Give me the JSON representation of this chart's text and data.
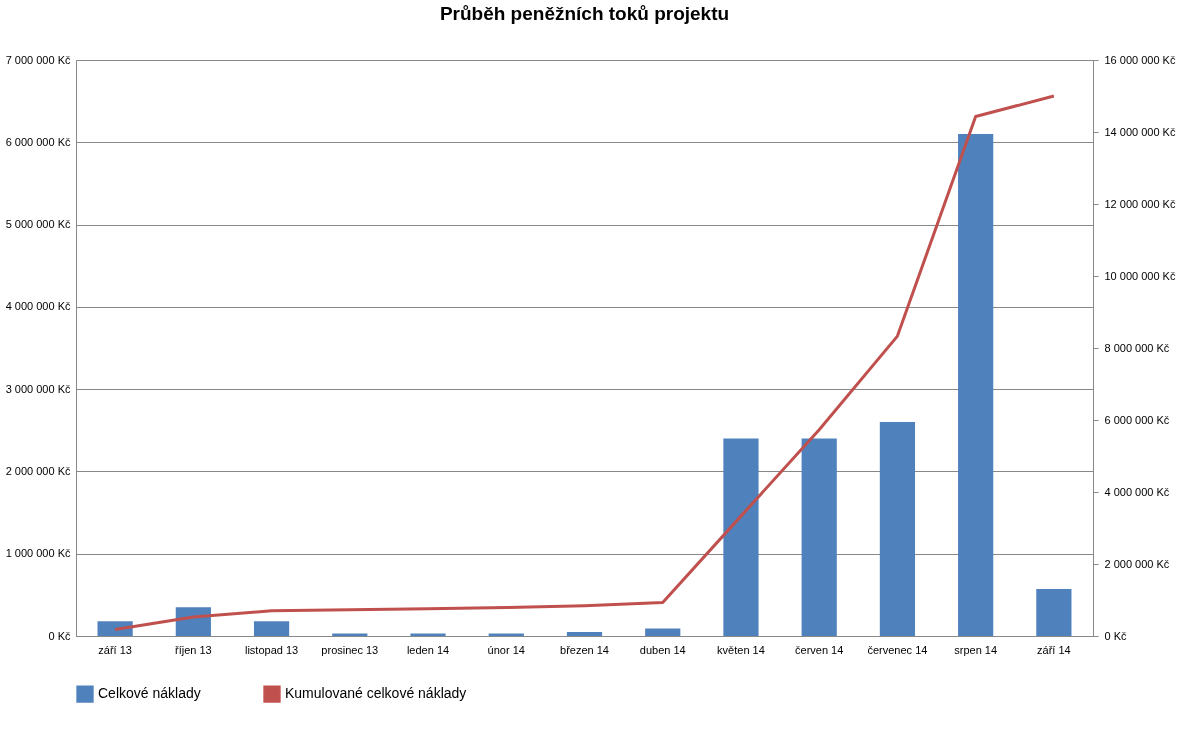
{
  "chart_data": {
    "type": "bar",
    "title": "Průběh peněžních toků projektu",
    "categories": [
      "září 13",
      "říjen 13",
      "listopad 13",
      "prosinec 13",
      "leden 14",
      "únor 14",
      "březen 14",
      "duben 14",
      "květen 14",
      "červen 14",
      "červenec 14",
      "srpen 14",
      "září 14"
    ],
    "series": [
      {
        "name": "Celkové náklady",
        "color": "#4f81bd",
        "values": [
          180000,
          350000,
          180000,
          30000,
          30000,
          30000,
          50000,
          90000,
          2400000,
          2400000,
          2600000,
          6100000,
          570000
        ]
      },
      {
        "name": "Kumulované celkové náklady",
        "type": "line",
        "axis": "y2",
        "color": "#c0504d",
        "values": [
          180000,
          530000,
          700000,
          730000,
          760000,
          790000,
          840000,
          930000,
          3330000,
          5730000,
          8330000,
          14430000,
          15000000
        ]
      }
    ],
    "ylim": [
      0,
      7000000
    ],
    "yticks": [
      {
        "value": 0,
        "label": "0 Kč"
      },
      {
        "value": 1000000,
        "label": "1 000 000 Kč"
      },
      {
        "value": 2000000,
        "label": "2 000 000 Kč"
      },
      {
        "value": 3000000,
        "label": "3 000 000 Kč"
      },
      {
        "value": 4000000,
        "label": "4 000 000 Kč"
      },
      {
        "value": 5000000,
        "label": "5 000 000 Kč"
      },
      {
        "value": 6000000,
        "label": "6 000 000 Kč"
      },
      {
        "value": 7000000,
        "label": "7 000 000 Kč"
      }
    ],
    "y2lim": [
      0,
      16000000
    ],
    "y2ticks": [
      {
        "value": 0,
        "label": "0 Kč"
      },
      {
        "value": 2000000,
        "label": "2 000 000 Kč"
      },
      {
        "value": 4000000,
        "label": "4 000 000 Kč"
      },
      {
        "value": 6000000,
        "label": "6 000 000 Kč"
      },
      {
        "value": 8000000,
        "label": "8 000 000 Kč"
      },
      {
        "value": 10000000,
        "label": "10 000 000 Kč"
      },
      {
        "value": 12000000,
        "label": "12 000 000 Kč"
      },
      {
        "value": 14000000,
        "label": "14 000 000 Kč"
      },
      {
        "value": 16000000,
        "label": "16 000 000 Kč"
      }
    ],
    "grid": "y",
    "legend": "bottom",
    "marker": "none",
    "line_style": "solid"
  }
}
